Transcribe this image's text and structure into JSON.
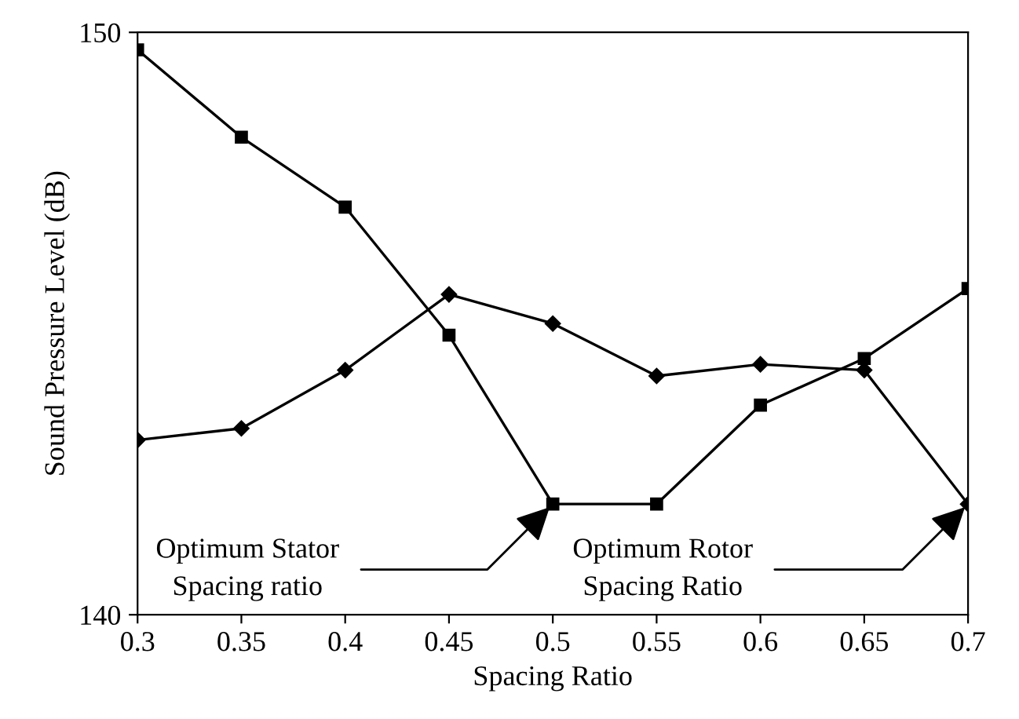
{
  "chart_data": {
    "type": "line",
    "xlabel": "Spacing Ratio",
    "ylabel": "Sound Pressure Level (dB)",
    "x": [
      0.3,
      0.35,
      0.4,
      0.45,
      0.5,
      0.55,
      0.6,
      0.65,
      0.7
    ],
    "series": [
      {
        "color": "#000000",
        "marker": "square",
        "values": [
          149.7,
          148.2,
          147.0,
          144.8,
          141.9,
          141.9,
          143.6,
          144.4,
          145.6
        ]
      },
      {
        "color": "#000000",
        "marker": "diamond",
        "values": [
          143.0,
          143.2,
          144.2,
          145.5,
          145.0,
          144.1,
          144.3,
          144.2,
          141.9
        ]
      }
    ],
    "xlim": [
      0.3,
      0.7
    ],
    "ylim": [
      140,
      150
    ],
    "xticks": [
      0.3,
      0.35,
      0.4,
      0.45,
      0.5,
      0.55,
      0.6,
      0.65,
      0.7
    ],
    "yticks": [
      140,
      150
    ],
    "line_style": "solid",
    "grid": false,
    "legend": false,
    "annotations": [
      {
        "text": "Optimum Stator\nSpacing ratio",
        "x": 0.5,
        "y": 141.9
      },
      {
        "text": "Optimum Rotor\nSpacing Ratio",
        "x": 0.7,
        "y": 141.9
      }
    ]
  }
}
